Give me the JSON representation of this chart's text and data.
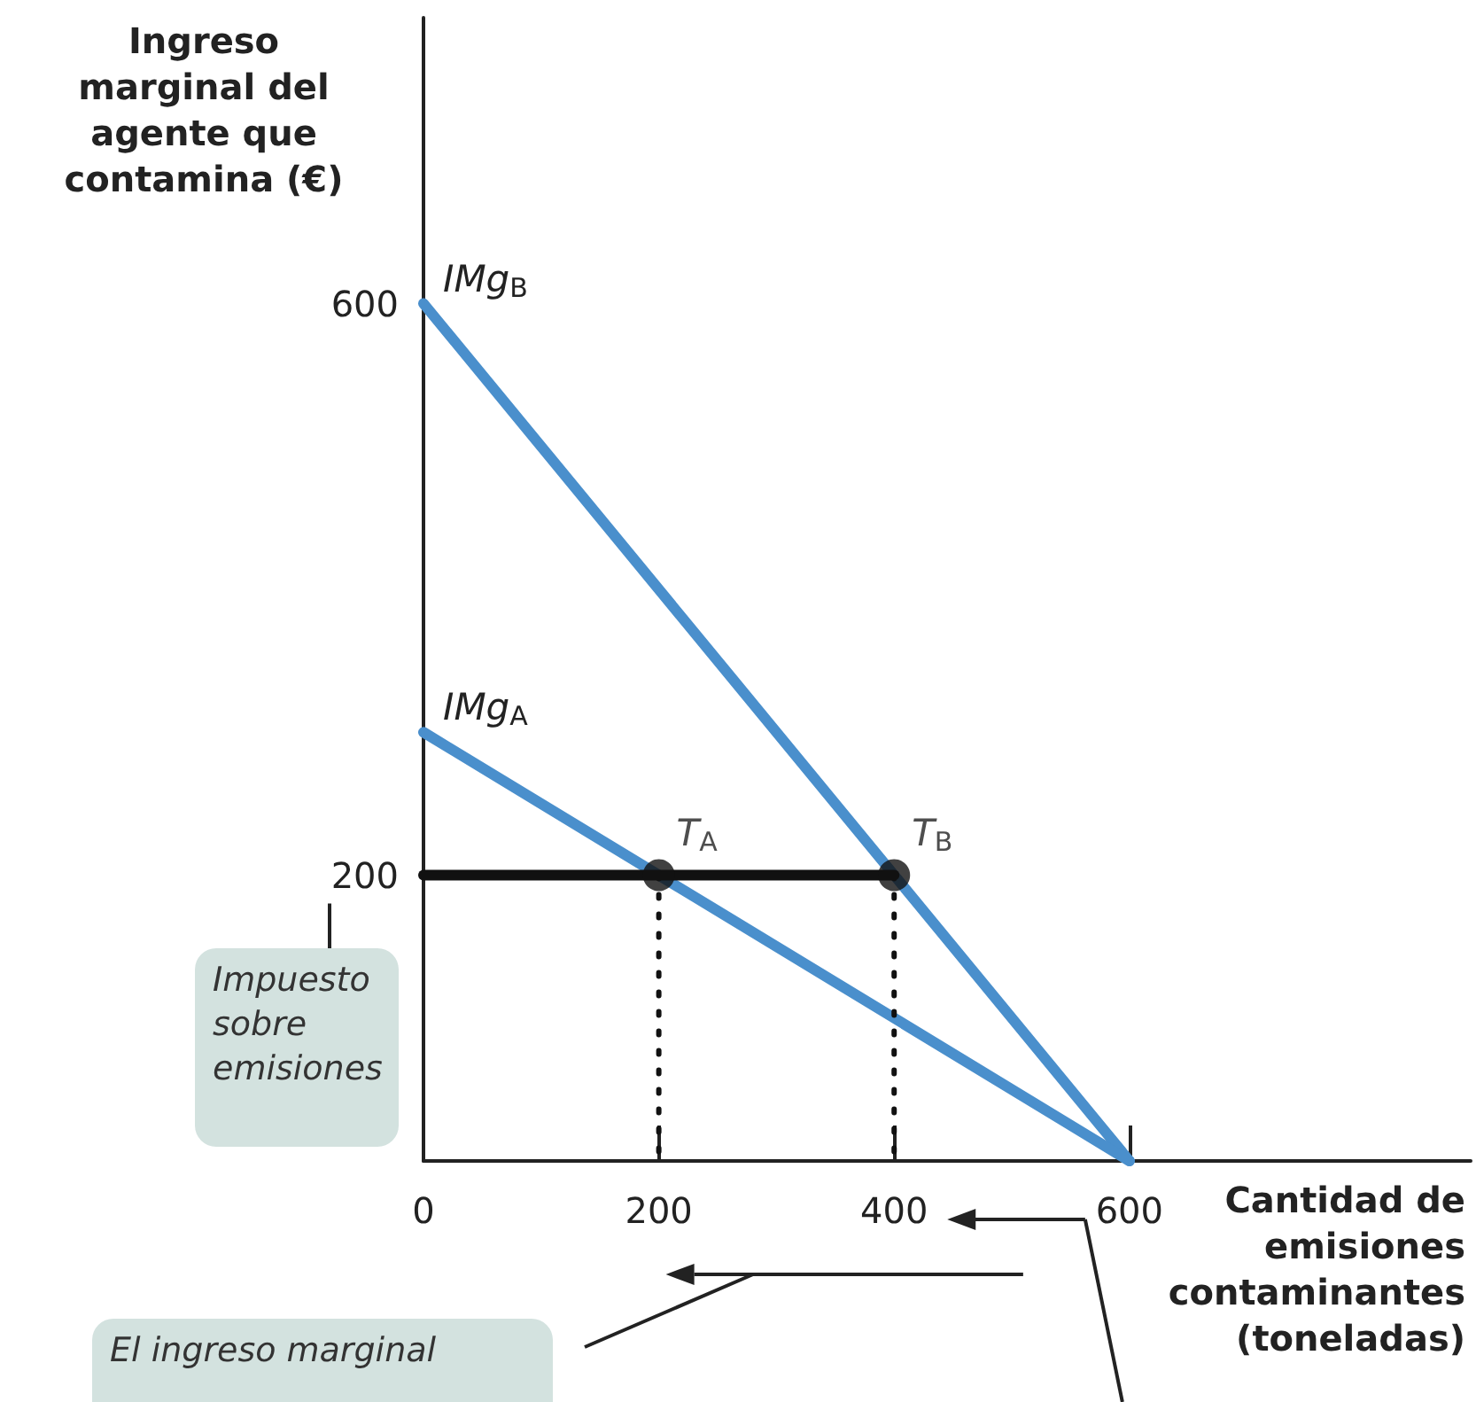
{
  "chart_data": {
    "type": "line",
    "xlabel": "Cantidad de emisiones contaminantes (toneladas)",
    "ylabel": "Ingreso marginal del agente que contamina (€)",
    "xlim": [
      0,
      890
    ],
    "ylim": [
      0,
      800
    ],
    "xticks": [
      0,
      200,
      400,
      600
    ],
    "yticks": [
      200,
      600
    ],
    "series": [
      {
        "name": "IMg$_{B}$",
        "color": "#4a8fcc",
        "x": [
          0,
          600
        ],
        "values": [
          600,
          0
        ],
        "marker": "none",
        "line_style": "solid"
      },
      {
        "name": "IMg$_{A}$",
        "color": "#4a8fcc",
        "x": [
          0,
          600
        ],
        "values": [
          300,
          0
        ],
        "marker": "none",
        "line_style": "solid"
      },
      {
        "color": "#111111",
        "x": [
          0,
          400
        ],
        "values": [
          200,
          200
        ],
        "marker": "none",
        "line_style": "solid"
      },
      {
        "color": "#111111",
        "x": [
          200,
          200
        ],
        "values": [
          200,
          0
        ],
        "marker": "none",
        "line_style": "dotted"
      },
      {
        "color": "#111111",
        "x": [
          400,
          400
        ],
        "values": [
          200,
          0
        ],
        "marker": "none",
        "line_style": "dotted"
      },
      {
        "type": "scatter",
        "color": "#111111",
        "x": [
          200,
          400
        ],
        "values": [
          200,
          200
        ],
        "marker": "circle",
        "value_labels": [
          "T$_{A}$",
          "T$_{B}$"
        ]
      }
    ],
    "annotations": [
      "Impuesto sobre emisiones",
      "El ingreso marginal"
    ]
  }
}
